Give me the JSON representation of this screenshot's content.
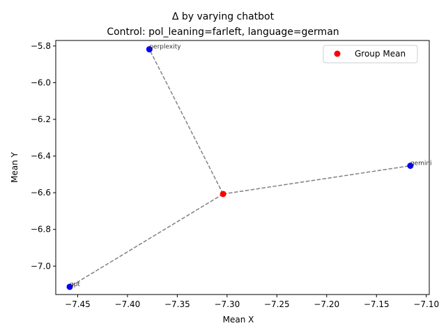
{
  "chart_data": {
    "type": "scatter",
    "title": "Δ by varying chatbot",
    "subtitle": "Control: pol_leaning=farleft, language=german",
    "xlabel": "Mean X",
    "ylabel": "Mean Y",
    "xlim": [
      -7.472,
      -7.097
    ],
    "ylim": [
      -7.155,
      -5.77
    ],
    "xticks": [
      -7.45,
      -7.4,
      -7.35,
      -7.3,
      -7.25,
      -7.2,
      -7.15,
      -7.1
    ],
    "xtick_labels": [
      "−7.45",
      "−7.40",
      "−7.35",
      "−7.30",
      "−7.25",
      "−7.20",
      "−7.15",
      "−7.10"
    ],
    "yticks": [
      -5.8,
      -6.0,
      -6.2,
      -6.4,
      -6.6,
      -6.8,
      -7.0
    ],
    "ytick_labels": [
      "−5.8",
      "−6.0",
      "−6.2",
      "−6.4",
      "−6.6",
      "−6.8",
      "−7.0"
    ],
    "grid": false,
    "legend_position": "top-right",
    "group_mean": {
      "name": "Group Mean",
      "x": -7.304,
      "y": -6.607,
      "color": "#ff0000"
    },
    "points": [
      {
        "label": "perplexity",
        "x": -7.378,
        "y": -5.818,
        "color": "#0000ff"
      },
      {
        "label": "gemini",
        "x": -7.116,
        "y": -6.453,
        "color": "#0000ff"
      },
      {
        "label": "gpt",
        "x": -7.458,
        "y": -7.113,
        "color": "#0000ff"
      }
    ],
    "line_color": "#808080"
  }
}
